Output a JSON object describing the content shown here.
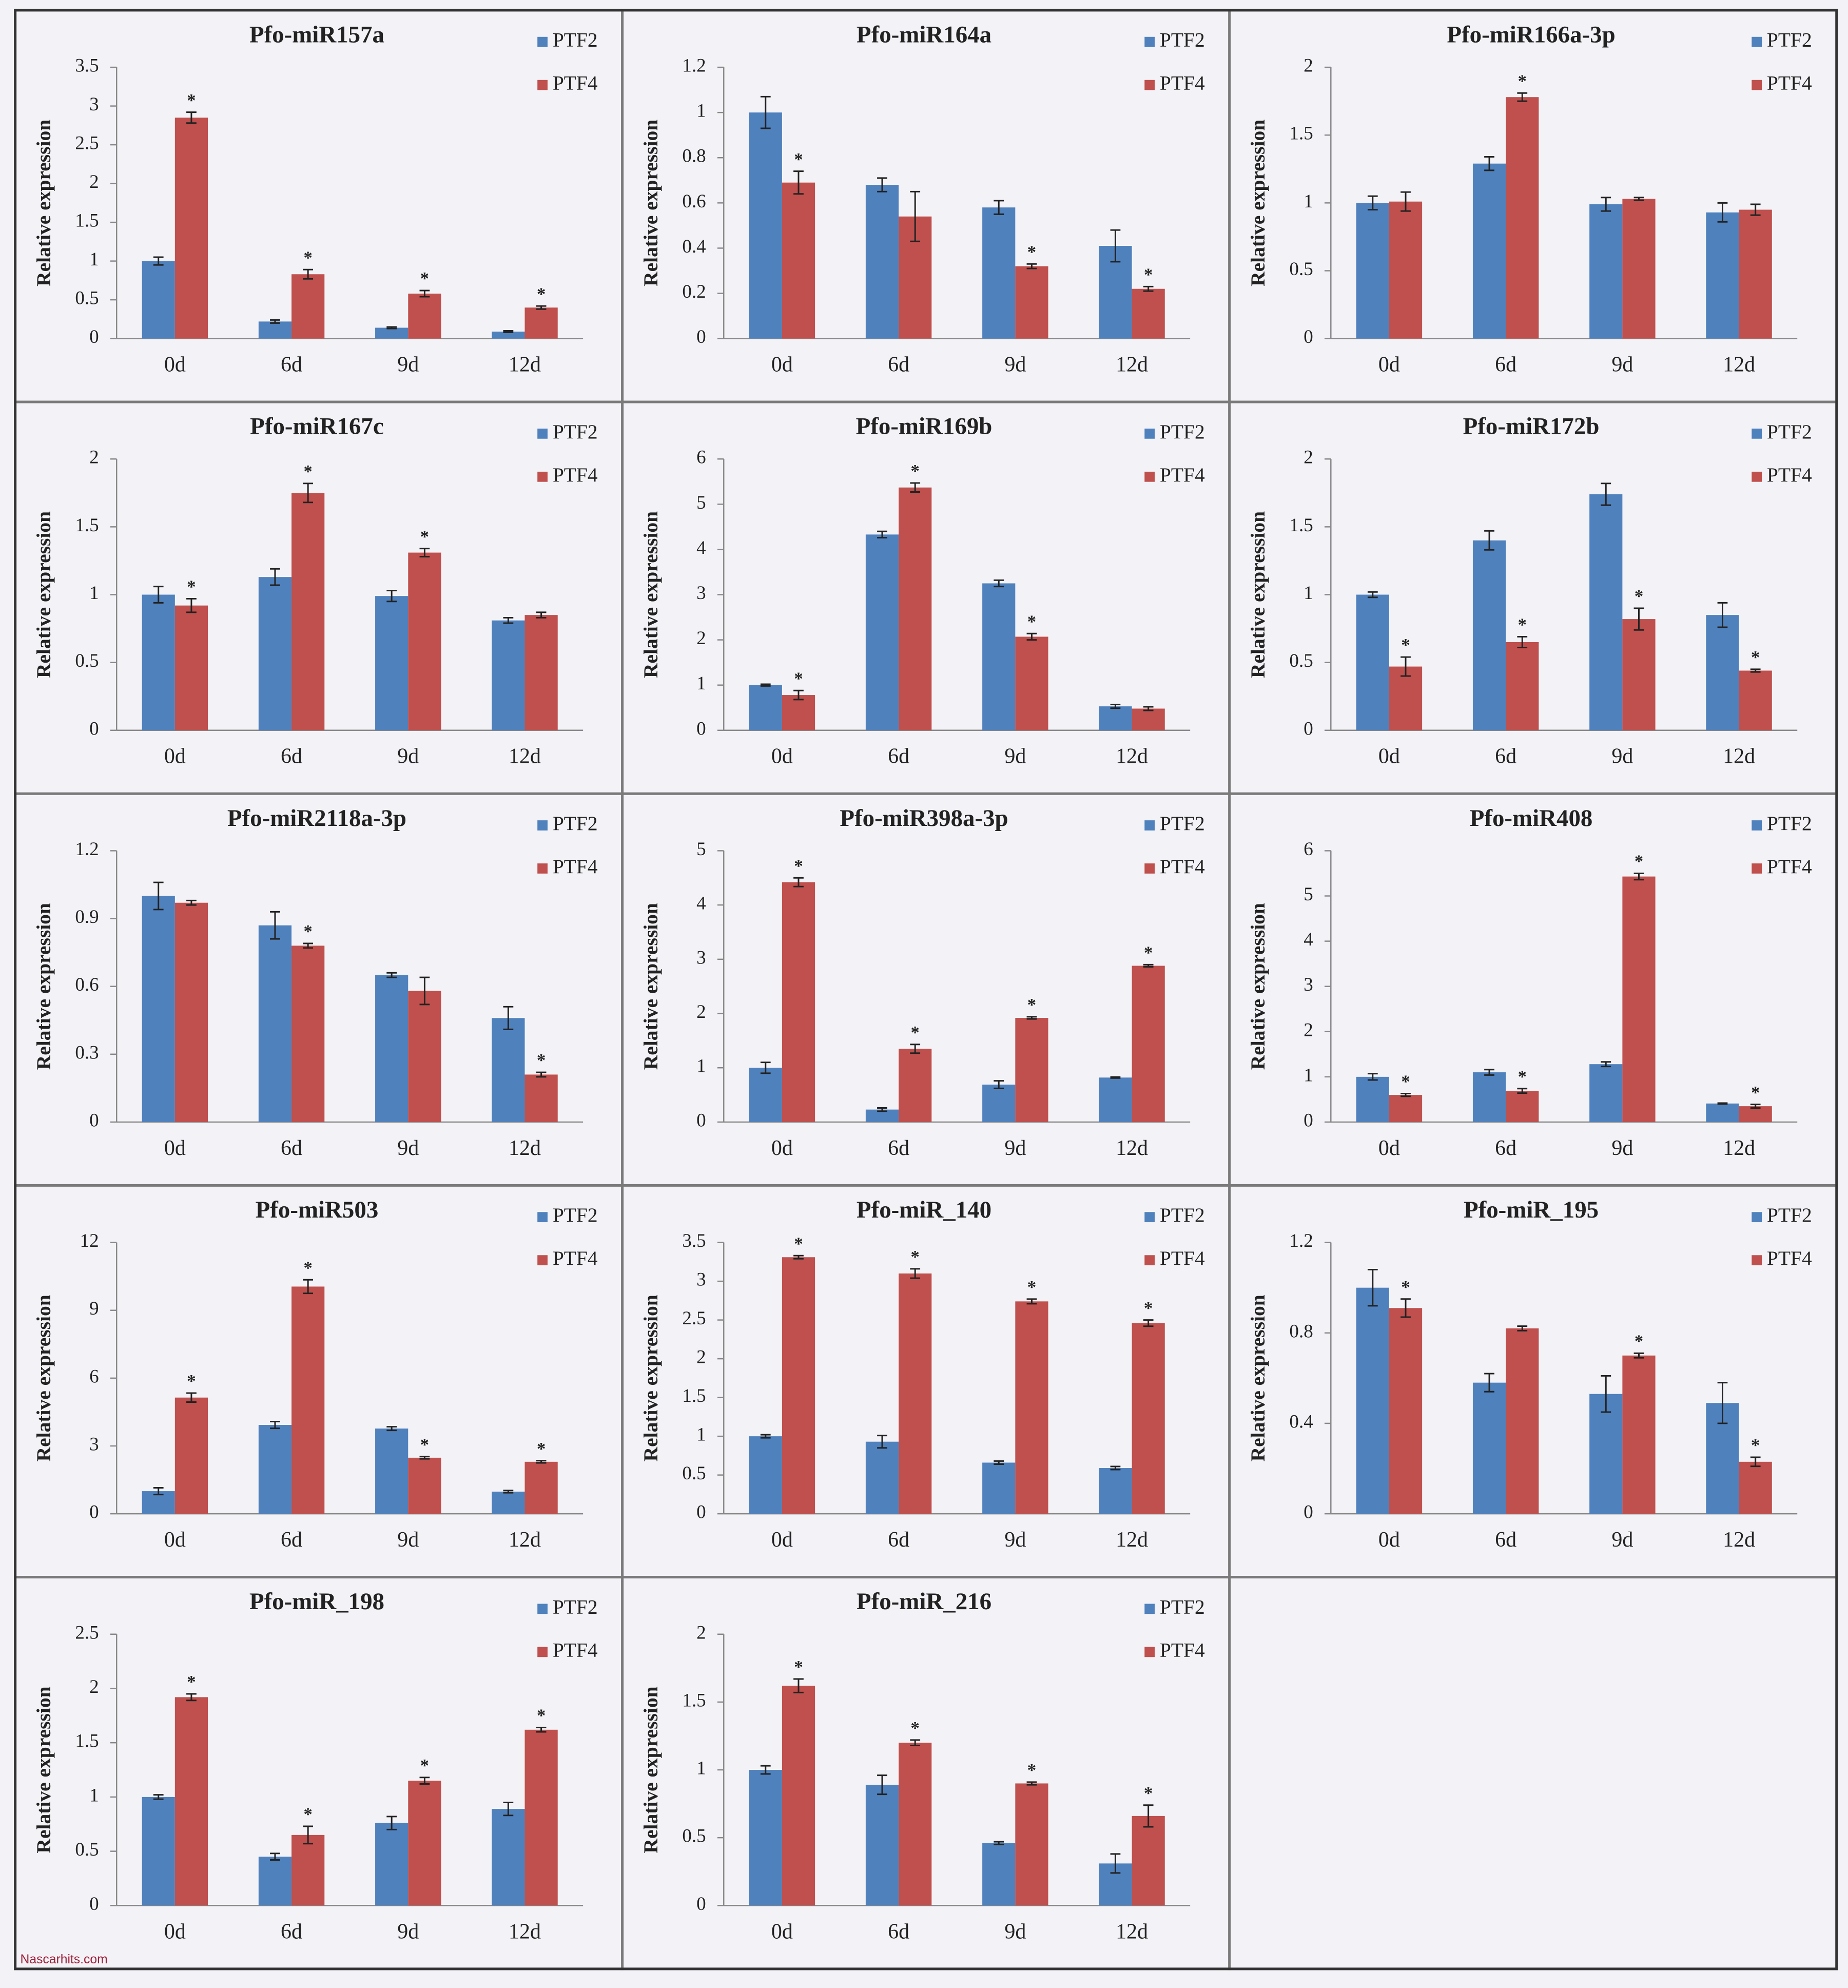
{
  "watermark": "Nascarhits.com",
  "chart_data": [
    {
      "type": "bar",
      "title": "Pfo-miR157a",
      "y_label": "Relative expression",
      "categories": [
        "0d",
        "6d",
        "9d",
        "12d"
      ],
      "ylim": [
        0,
        3.5
      ],
      "yticks": [
        0,
        0.5,
        1,
        1.5,
        2,
        2.5,
        3,
        3.5
      ],
      "grid": false,
      "legend": "top-right",
      "series": [
        {
          "name": "PTF2",
          "color": "#4f81bd",
          "values": [
            1,
            0.22,
            0.14,
            0.09
          ],
          "errors": [
            0.05,
            0.02,
            0.01,
            0.01
          ],
          "annotations": [
            null,
            null,
            null,
            null
          ]
        },
        {
          "name": "PTF4",
          "color": "#c0504d",
          "values": [
            2.85,
            0.83,
            0.58,
            0.4
          ],
          "errors": [
            0.07,
            0.06,
            0.04,
            0.02
          ],
          "annotations": [
            "*",
            "*",
            "*",
            "*"
          ]
        }
      ]
    },
    {
      "type": "bar",
      "title": "Pfo-miR164a",
      "y_label": "Relative expression",
      "categories": [
        "0d",
        "6d",
        "9d",
        "12d"
      ],
      "ylim": [
        0,
        1.2
      ],
      "yticks": [
        0,
        0.2,
        0.4,
        0.6,
        0.8,
        1,
        1.2
      ],
      "grid": false,
      "legend": "top-right",
      "series": [
        {
          "name": "PTF2",
          "color": "#4f81bd",
          "values": [
            1,
            0.68,
            0.58,
            0.41
          ],
          "errors": [
            0.07,
            0.03,
            0.03,
            0.07
          ],
          "annotations": [
            null,
            null,
            null,
            null
          ]
        },
        {
          "name": "PTF4",
          "color": "#c0504d",
          "values": [
            0.69,
            0.54,
            0.32,
            0.22
          ],
          "errors": [
            0.05,
            0.11,
            0.01,
            0.01
          ],
          "annotations": [
            "*",
            null,
            "*",
            "*"
          ]
        }
      ]
    },
    {
      "type": "bar",
      "title": "Pfo-miR166a-3p",
      "y_label": "Relative expression",
      "categories": [
        "0d",
        "6d",
        "9d",
        "12d"
      ],
      "ylim": [
        0,
        2
      ],
      "yticks": [
        0,
        0.5,
        1,
        1.5,
        2
      ],
      "grid": false,
      "legend": "top-right",
      "series": [
        {
          "name": "PTF2",
          "color": "#4f81bd",
          "values": [
            1,
            1.29,
            0.99,
            0.93
          ],
          "errors": [
            0.05,
            0.05,
            0.05,
            0.07
          ],
          "annotations": [
            null,
            null,
            null,
            null
          ]
        },
        {
          "name": "PTF4",
          "color": "#c0504d",
          "values": [
            1.01,
            1.78,
            1.03,
            0.95
          ],
          "errors": [
            0.07,
            0.03,
            0.01,
            0.04
          ],
          "annotations": [
            null,
            "*",
            null,
            null
          ]
        }
      ]
    },
    {
      "type": "bar",
      "title": "Pfo-miR167c",
      "y_label": "Relative expression",
      "categories": [
        "0d",
        "6d",
        "9d",
        "12d"
      ],
      "ylim": [
        0,
        2
      ],
      "yticks": [
        0,
        0.5,
        1,
        1.5,
        2
      ],
      "grid": false,
      "legend": "top-right",
      "series": [
        {
          "name": "PTF2",
          "color": "#4f81bd",
          "values": [
            1,
            1.13,
            0.99,
            0.81
          ],
          "errors": [
            0.06,
            0.06,
            0.04,
            0.02
          ],
          "annotations": [
            null,
            null,
            null,
            null
          ]
        },
        {
          "name": "PTF4",
          "color": "#c0504d",
          "values": [
            0.92,
            1.75,
            1.31,
            0.85
          ],
          "errors": [
            0.05,
            0.07,
            0.03,
            0.02
          ],
          "annotations": [
            "*",
            "*",
            "*",
            null
          ]
        }
      ]
    },
    {
      "type": "bar",
      "title": "Pfo-miR169b",
      "y_label": "Relative expression",
      "categories": [
        "0d",
        "6d",
        "9d",
        "12d"
      ],
      "ylim": [
        0,
        6
      ],
      "yticks": [
        0,
        1,
        2,
        3,
        4,
        5,
        6
      ],
      "grid": false,
      "legend": "top-right",
      "series": [
        {
          "name": "PTF2",
          "color": "#4f81bd",
          "values": [
            1,
            4.33,
            3.25,
            0.53
          ],
          "errors": [
            0.02,
            0.07,
            0.07,
            0.04
          ],
          "annotations": [
            null,
            null,
            null,
            null
          ]
        },
        {
          "name": "PTF4",
          "color": "#c0504d",
          "values": [
            0.78,
            5.37,
            2.07,
            0.48
          ],
          "errors": [
            0.1,
            0.1,
            0.07,
            0.04
          ],
          "annotations": [
            "*",
            "*",
            "*",
            null
          ]
        }
      ]
    },
    {
      "type": "bar",
      "title": "Pfo-miR172b",
      "y_label": "Relative expression",
      "categories": [
        "0d",
        "6d",
        "9d",
        "12d"
      ],
      "ylim": [
        0,
        2
      ],
      "yticks": [
        0,
        0.5,
        1,
        1.5,
        2
      ],
      "grid": false,
      "legend": "top-right",
      "series": [
        {
          "name": "PTF2",
          "color": "#4f81bd",
          "values": [
            1,
            1.4,
            1.74,
            0.85
          ],
          "errors": [
            0.02,
            0.07,
            0.08,
            0.09
          ],
          "annotations": [
            null,
            null,
            null,
            null
          ]
        },
        {
          "name": "PTF4",
          "color": "#c0504d",
          "values": [
            0.47,
            0.65,
            0.82,
            0.44
          ],
          "errors": [
            0.07,
            0.04,
            0.08,
            0.01
          ],
          "annotations": [
            "*",
            "*",
            "*",
            "*"
          ]
        }
      ]
    },
    {
      "type": "bar",
      "title": "Pfo-miR2118a-3p",
      "y_label": "Relative expression",
      "categories": [
        "0d",
        "6d",
        "9d",
        "12d"
      ],
      "ylim": [
        0,
        1.2
      ],
      "yticks": [
        0,
        0.3,
        0.6,
        0.9,
        1.2
      ],
      "grid": false,
      "legend": "top-right",
      "series": [
        {
          "name": "PTF2",
          "color": "#4f81bd",
          "values": [
            1,
            0.87,
            0.65,
            0.46
          ],
          "errors": [
            0.06,
            0.06,
            0.01,
            0.05
          ],
          "annotations": [
            null,
            null,
            null,
            null
          ]
        },
        {
          "name": "PTF4",
          "color": "#c0504d",
          "values": [
            0.97,
            0.78,
            0.58,
            0.21
          ],
          "errors": [
            0.01,
            0.01,
            0.06,
            0.01
          ],
          "annotations": [
            null,
            "*",
            null,
            "*"
          ]
        }
      ]
    },
    {
      "type": "bar",
      "title": "Pfo-miR398a-3p",
      "y_label": "Relative expression",
      "categories": [
        "0d",
        "6d",
        "9d",
        "12d"
      ],
      "ylim": [
        0,
        5
      ],
      "yticks": [
        0,
        1,
        2,
        3,
        4,
        5
      ],
      "grid": false,
      "legend": "top-right",
      "series": [
        {
          "name": "PTF2",
          "color": "#4f81bd",
          "values": [
            1,
            0.23,
            0.69,
            0.82
          ],
          "errors": [
            0.1,
            0.03,
            0.07,
            0.01
          ],
          "annotations": [
            null,
            null,
            null,
            null
          ]
        },
        {
          "name": "PTF4",
          "color": "#c0504d",
          "values": [
            4.42,
            1.35,
            1.92,
            2.88
          ],
          "errors": [
            0.08,
            0.08,
            0.02,
            0.02
          ],
          "annotations": [
            "*",
            "*",
            "*",
            "*"
          ]
        }
      ]
    },
    {
      "type": "bar",
      "title": "Pfo-miR408",
      "y_label": "Relative expression",
      "categories": [
        "0d",
        "6d",
        "9d",
        "12d"
      ],
      "ylim": [
        0,
        6
      ],
      "yticks": [
        0,
        1,
        2,
        3,
        4,
        5,
        6
      ],
      "grid": false,
      "legend": "top-right",
      "series": [
        {
          "name": "PTF2",
          "color": "#4f81bd",
          "values": [
            1,
            1.1,
            1.28,
            0.41
          ],
          "errors": [
            0.07,
            0.06,
            0.05,
            0.01
          ],
          "annotations": [
            null,
            null,
            null,
            null
          ]
        },
        {
          "name": "PTF4",
          "color": "#c0504d",
          "values": [
            0.6,
            0.69,
            5.43,
            0.35
          ],
          "errors": [
            0.03,
            0.05,
            0.07,
            0.04
          ],
          "annotations": [
            "*",
            "*",
            "*",
            "*"
          ]
        }
      ]
    },
    {
      "type": "bar",
      "title": "Pfo-miR503",
      "y_label": "Relative expression",
      "categories": [
        "0d",
        "6d",
        "9d",
        "12d"
      ],
      "ylim": [
        0,
        12
      ],
      "yticks": [
        0,
        3,
        6,
        9,
        12
      ],
      "grid": false,
      "legend": "top-right",
      "series": [
        {
          "name": "PTF2",
          "color": "#4f81bd",
          "values": [
            1,
            3.93,
            3.77,
            0.98
          ],
          "errors": [
            0.15,
            0.15,
            0.08,
            0.05
          ],
          "annotations": [
            null,
            null,
            null,
            null
          ]
        },
        {
          "name": "PTF4",
          "color": "#c0504d",
          "values": [
            5.14,
            10.05,
            2.48,
            2.3
          ],
          "errors": [
            0.2,
            0.3,
            0.05,
            0.05
          ],
          "annotations": [
            "*",
            "*",
            "*",
            "*"
          ]
        }
      ]
    },
    {
      "type": "bar",
      "title": "Pfo-miR_140",
      "y_label": "Relative expression",
      "categories": [
        "0d",
        "6d",
        "9d",
        "12d"
      ],
      "ylim": [
        0,
        3.5
      ],
      "yticks": [
        0,
        0.5,
        1,
        1.5,
        2,
        2.5,
        3,
        3.5
      ],
      "grid": false,
      "legend": "top-right",
      "series": [
        {
          "name": "PTF2",
          "color": "#4f81bd",
          "values": [
            1,
            0.93,
            0.66,
            0.59
          ],
          "errors": [
            0.02,
            0.08,
            0.02,
            0.02
          ],
          "annotations": [
            null,
            null,
            null,
            null
          ]
        },
        {
          "name": "PTF4",
          "color": "#c0504d",
          "values": [
            3.31,
            3.1,
            2.74,
            2.46
          ],
          "errors": [
            0.02,
            0.06,
            0.03,
            0.04
          ],
          "annotations": [
            "*",
            "*",
            "*",
            "*"
          ]
        }
      ]
    },
    {
      "type": "bar",
      "title": "Pfo-miR_195",
      "y_label": "Relative expression",
      "categories": [
        "0d",
        "6d",
        "9d",
        "12d"
      ],
      "ylim": [
        0,
        1.2
      ],
      "yticks": [
        0,
        0.4,
        0.8,
        1.2
      ],
      "grid": false,
      "legend": "top-right",
      "series": [
        {
          "name": "PTF2",
          "color": "#4f81bd",
          "values": [
            1,
            0.58,
            0.53,
            0.49
          ],
          "errors": [
            0.08,
            0.04,
            0.08,
            0.09
          ],
          "annotations": [
            null,
            null,
            null,
            null
          ]
        },
        {
          "name": "PTF4",
          "color": "#c0504d",
          "values": [
            0.91,
            0.82,
            0.7,
            0.23
          ],
          "errors": [
            0.04,
            0.01,
            0.01,
            0.02
          ],
          "annotations": [
            "*",
            null,
            "*",
            "*"
          ]
        }
      ]
    },
    {
      "type": "bar",
      "title": "Pfo-miR_198",
      "y_label": "Relative expression",
      "categories": [
        "0d",
        "6d",
        "9d",
        "12d"
      ],
      "ylim": [
        0,
        2.5
      ],
      "yticks": [
        0,
        0.5,
        1,
        1.5,
        2,
        2.5
      ],
      "grid": false,
      "legend": "top-right",
      "series": [
        {
          "name": "PTF2",
          "color": "#4f81bd",
          "values": [
            1,
            0.45,
            0.76,
            0.89
          ],
          "errors": [
            0.02,
            0.03,
            0.06,
            0.06
          ],
          "annotations": [
            null,
            null,
            null,
            null
          ]
        },
        {
          "name": "PTF4",
          "color": "#c0504d",
          "values": [
            1.92,
            0.65,
            1.15,
            1.62
          ],
          "errors": [
            0.03,
            0.08,
            0.03,
            0.02
          ],
          "annotations": [
            "*",
            "*",
            "*",
            "*"
          ]
        }
      ]
    },
    {
      "type": "bar",
      "title": "Pfo-miR_216",
      "y_label": "Relative expression",
      "categories": [
        "0d",
        "6d",
        "9d",
        "12d"
      ],
      "ylim": [
        0,
        2
      ],
      "yticks": [
        0,
        0.5,
        1,
        1.5,
        2
      ],
      "grid": false,
      "legend": "top-right",
      "series": [
        {
          "name": "PTF2",
          "color": "#4f81bd",
          "values": [
            1,
            0.89,
            0.46,
            0.31
          ],
          "errors": [
            0.03,
            0.07,
            0.01,
            0.07
          ],
          "annotations": [
            null,
            null,
            null,
            null
          ]
        },
        {
          "name": "PTF4",
          "color": "#c0504d",
          "values": [
            1.62,
            1.2,
            0.9,
            0.66
          ],
          "errors": [
            0.05,
            0.02,
            0.01,
            0.08
          ],
          "annotations": [
            "*",
            "*",
            "*",
            "*"
          ]
        }
      ]
    }
  ]
}
